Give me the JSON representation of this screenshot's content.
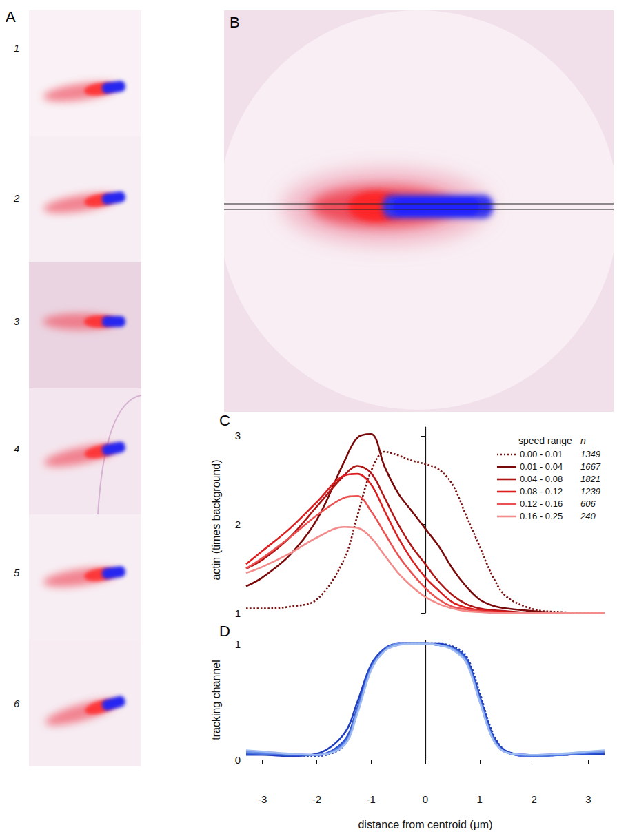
{
  "panels": {
    "A": {
      "label": "A",
      "tiles": [
        "1",
        "2",
        "3",
        "4",
        "5",
        "6"
      ]
    },
    "B": {
      "label": "B"
    }
  },
  "chart_data": [
    {
      "label": "C",
      "type": "line",
      "ylabel": "actin (times background)",
      "legend_title": "speed range",
      "n_label": "n",
      "legend": "upper right",
      "tick_labels": "y",
      "x": [
        -3.3,
        -3,
        -2.5,
        -2,
        -1.5,
        -1.25,
        -1,
        -0.75,
        -0.5,
        -0.25,
        0,
        0.25,
        0.5,
        0.75,
        1,
        1.25,
        1.5,
        2,
        2.5,
        3,
        3.3
      ],
      "xlim": [
        -3.3,
        3.3
      ],
      "ylim": [
        1,
        3.1
      ],
      "yticks": [
        1,
        2,
        3
      ],
      "series": [
        {
          "name": "0.00 - 0.01",
          "n": 1349,
          "color": "#7a1212",
          "line_style": "dotted",
          "values": [
            1.05,
            1.05,
            1.07,
            1.15,
            1.6,
            2.1,
            2.6,
            2.82,
            2.78,
            2.72,
            2.68,
            2.62,
            2.45,
            2.1,
            1.75,
            1.4,
            1.18,
            1.04,
            1.01,
            1.0,
            1.0
          ]
        },
        {
          "name": "0.01 - 0.04",
          "n": 1667,
          "color": "#7a0a0a",
          "line_style": "solid",
          "values": [
            1.3,
            1.4,
            1.65,
            2.05,
            2.7,
            2.98,
            3.02,
            2.65,
            2.35,
            2.15,
            1.95,
            1.75,
            1.5,
            1.3,
            1.15,
            1.08,
            1.05,
            1.02,
            1.0,
            1.0,
            1.0
          ]
        },
        {
          "name": "0.04 - 0.08",
          "n": 1821,
          "color": "#b01515",
          "line_style": "solid",
          "values": [
            1.5,
            1.6,
            1.85,
            2.2,
            2.55,
            2.66,
            2.58,
            2.3,
            2.0,
            1.75,
            1.55,
            1.35,
            1.2,
            1.1,
            1.05,
            1.03,
            1.02,
            1.0,
            1.0,
            1.0,
            1.0
          ]
        },
        {
          "name": "0.08 - 0.12",
          "n": 1239,
          "color": "#dc1e1e",
          "line_style": "solid",
          "values": [
            1.55,
            1.7,
            1.95,
            2.25,
            2.55,
            2.57,
            2.45,
            2.15,
            1.85,
            1.6,
            1.4,
            1.25,
            1.12,
            1.06,
            1.03,
            1.02,
            1.01,
            1.0,
            1.0,
            1.0,
            1.0
          ]
        },
        {
          "name": "0.12 - 0.16",
          "n": 606,
          "color": "#ec5050",
          "line_style": "solid",
          "values": [
            1.5,
            1.62,
            1.85,
            2.1,
            2.3,
            2.32,
            2.15,
            1.9,
            1.65,
            1.45,
            1.28,
            1.15,
            1.07,
            1.04,
            1.02,
            1.01,
            1.0,
            1.0,
            1.0,
            1.0,
            1.0
          ]
        },
        {
          "name": "0.16 - 0.25",
          "n": 240,
          "color": "#f48c8c",
          "line_style": "solid",
          "values": [
            1.45,
            1.52,
            1.67,
            1.85,
            1.97,
            1.96,
            1.85,
            1.65,
            1.45,
            1.3,
            1.18,
            1.1,
            1.05,
            1.02,
            1.01,
            1.0,
            1.0,
            1.0,
            1.0,
            1.0,
            1.0
          ]
        }
      ]
    },
    {
      "label": "D",
      "type": "line",
      "xlabel": "distance from centroid (μm)",
      "ylabel": "tracking channel",
      "x": [
        -3.3,
        -3,
        -2.5,
        -2,
        -1.5,
        -1.25,
        -1,
        -0.75,
        -0.5,
        -0.25,
        0,
        0.25,
        0.5,
        0.75,
        1,
        1.25,
        1.5,
        2,
        2.5,
        3,
        3.3
      ],
      "xlim": [
        -3.3,
        3.3
      ],
      "xticks": [
        -3,
        -2,
        -1,
        0,
        1,
        2,
        3
      ],
      "ylim": [
        0,
        1.03
      ],
      "yticks": [
        0,
        1
      ],
      "series": [
        {
          "color": "#1a3aa8",
          "line_style": "dotted",
          "values": [
            0.05,
            0.05,
            0.04,
            0.03,
            0.12,
            0.42,
            0.8,
            0.96,
            1.0,
            1.0,
            1.0,
            1.0,
            0.98,
            0.9,
            0.58,
            0.22,
            0.07,
            0.03,
            0.04,
            0.05,
            0.06
          ]
        },
        {
          "color": "#1f3fbf",
          "line_style": "solid",
          "values": [
            0.04,
            0.04,
            0.03,
            0.05,
            0.22,
            0.5,
            0.82,
            0.96,
            1.0,
            1.0,
            1.0,
            1.0,
            0.97,
            0.88,
            0.55,
            0.2,
            0.07,
            0.04,
            0.04,
            0.05,
            0.05
          ]
        },
        {
          "color": "#2c52d2",
          "line_style": "solid",
          "values": [
            0.05,
            0.05,
            0.04,
            0.04,
            0.16,
            0.45,
            0.8,
            0.95,
            1.0,
            1.0,
            1.0,
            0.99,
            0.97,
            0.87,
            0.53,
            0.19,
            0.06,
            0.03,
            0.04,
            0.05,
            0.06
          ]
        },
        {
          "color": "#4a72e0",
          "line_style": "solid",
          "values": [
            0.06,
            0.05,
            0.04,
            0.04,
            0.14,
            0.43,
            0.79,
            0.95,
            1.0,
            1.0,
            1.0,
            0.99,
            0.96,
            0.86,
            0.52,
            0.18,
            0.06,
            0.03,
            0.04,
            0.06,
            0.07
          ]
        },
        {
          "color": "#7096ea",
          "line_style": "solid",
          "values": [
            0.07,
            0.06,
            0.05,
            0.04,
            0.13,
            0.42,
            0.78,
            0.94,
            1.0,
            1.0,
            1.0,
            0.99,
            0.96,
            0.85,
            0.51,
            0.17,
            0.06,
            0.04,
            0.05,
            0.06,
            0.07
          ]
        },
        {
          "color": "#a0bbf2",
          "line_style": "solid",
          "values": [
            0.08,
            0.07,
            0.05,
            0.04,
            0.12,
            0.4,
            0.77,
            0.94,
            0.99,
            1.0,
            1.0,
            0.99,
            0.95,
            0.84,
            0.5,
            0.17,
            0.06,
            0.04,
            0.05,
            0.07,
            0.08
          ]
        }
      ]
    }
  ]
}
